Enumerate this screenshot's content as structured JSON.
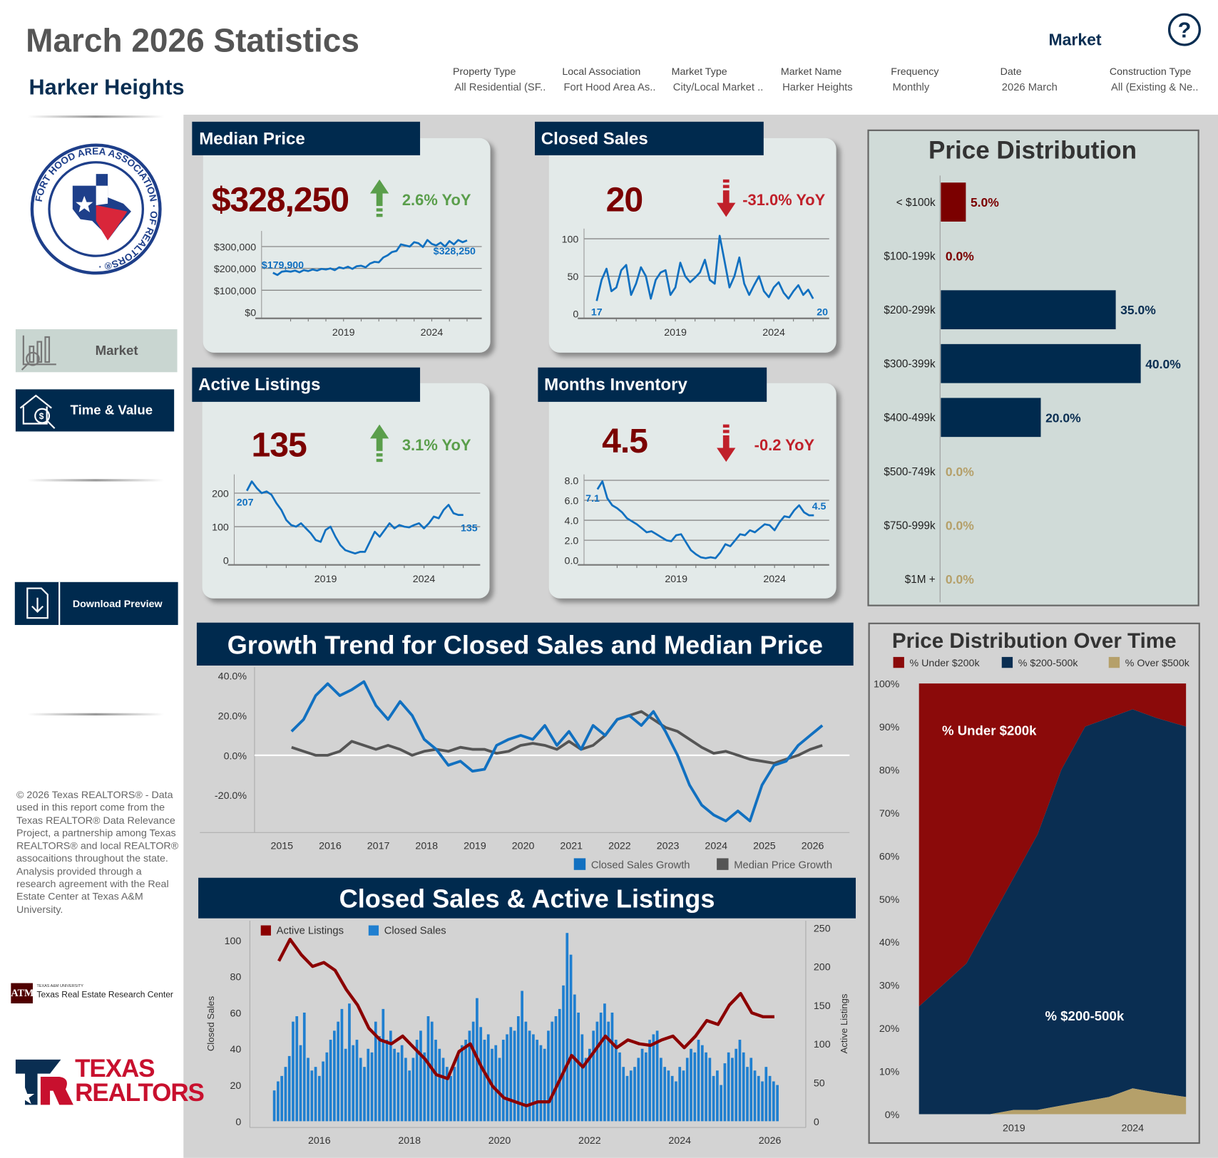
{
  "header": {
    "title": "March 2026 Statistics",
    "market_name": "Harker Heights",
    "view_label": "Market",
    "help_icon": "question-circle-icon"
  },
  "filters": [
    {
      "label": "Property Type",
      "value": "All Residential (SF.."
    },
    {
      "label": "Local Association",
      "value": "Fort Hood Area As.."
    },
    {
      "label": "Market Type",
      "value": "City/Local Market .."
    },
    {
      "label": "Market Name",
      "value": "Harker Heights"
    },
    {
      "label": "Frequency",
      "value": "Monthly"
    },
    {
      "label": "Date",
      "value": "2026 March"
    },
    {
      "label": "Construction Type",
      "value": "All (Existing & Ne.."
    }
  ],
  "sidebar": {
    "logo_text": "FORT HOOD AREA ASSOCIATION OF REALTORS",
    "nav": [
      {
        "label": "Market",
        "icon": "market-chart-icon",
        "active": true
      },
      {
        "label": "Time & Value",
        "icon": "house-money-icon",
        "active": false
      }
    ],
    "download_label": "Download Preview",
    "download_icon": "download-icon",
    "footer_text": "© 2026 Texas REALTORS® - Data used in this report come from the Texas REALTOR® Data Relevance Project, a partnership among Texas REALTORS® and local REALTOR® assocaitions throughout the state. Analysis provided through a research agreement with the Real Estate Center at Texas A&M University.",
    "tamu_logo_small": "TEXAS A&M UNIVERSITY",
    "tamu_logo_text": "Texas Real Estate Research Center",
    "texas_realtors_logo": "TEXAS REALTORS"
  },
  "colors": {
    "navy": "#002a4e",
    "kpi_value": "#7b0000",
    "positive": "#5a9e4b",
    "negative": "#c0202a",
    "line_blue": "#1170c0",
    "bar_blue": "#1f7fd0",
    "median_growth_gray": "#555555",
    "listings_red": "#8b0000",
    "tan": "#b5a06a"
  },
  "kpis": {
    "median_price": {
      "title": "Median Price",
      "value": "$328,250",
      "change": "2.6% YoY",
      "direction": "up",
      "first_label": "$179,900",
      "last_label": "$328,250"
    },
    "closed_sales": {
      "title": "Closed Sales",
      "value": "20",
      "change": "-31.0% YoY",
      "direction": "down",
      "first_label": "17",
      "last_label": "20"
    },
    "active_listings": {
      "title": "Active Listings",
      "value": "135",
      "change": "3.1% YoY",
      "direction": "up",
      "first_label": "207",
      "last_label": "135"
    },
    "months_inventory": {
      "title": "Months Inventory",
      "value": "4.5",
      "change": "-0.2 YoY",
      "direction": "down",
      "first_label": "7.1",
      "last_label": "4.5"
    }
  },
  "chart_data": [
    {
      "id": "median_price_spark",
      "type": "line",
      "frequency": "quarterly",
      "x_start": "2015 Q1",
      "xticks": [
        "2019",
        "2024"
      ],
      "yticks": [
        "$300,000",
        "$200,000",
        "$100,000",
        "$0"
      ],
      "values": [
        179900,
        170000,
        185000,
        188000,
        185000,
        190000,
        182000,
        192000,
        188000,
        195000,
        190000,
        198000,
        195000,
        200000,
        192000,
        205000,
        200000,
        208000,
        198000,
        210000,
        212000,
        205000,
        222000,
        230000,
        228000,
        250000,
        260000,
        275000,
        280000,
        310000,
        305000,
        300000,
        320000,
        315000,
        298000,
        330000,
        312000,
        305000,
        318000,
        300000,
        325000,
        310000,
        330000,
        320000,
        328250
      ]
    },
    {
      "id": "closed_sales_spark",
      "type": "line",
      "frequency": "quarterly",
      "x_start": "2015 Q1",
      "xticks": [
        "2019",
        "2024"
      ],
      "yticks": [
        "100",
        "50",
        "0"
      ],
      "values": [
        17,
        45,
        60,
        30,
        35,
        58,
        65,
        25,
        40,
        62,
        50,
        20,
        45,
        55,
        58,
        25,
        35,
        68,
        50,
        42,
        48,
        55,
        72,
        45,
        40,
        104,
        70,
        35,
        50,
        75,
        40,
        25,
        38,
        50,
        30,
        22,
        35,
        42,
        28,
        20,
        30,
        38,
        25,
        32,
        20
      ]
    },
    {
      "id": "active_listings_spark",
      "type": "line",
      "frequency": "quarterly",
      "x_start": "2015 Q1",
      "xticks": [
        "2019",
        "2024"
      ],
      "yticks": [
        "200",
        "100",
        "0"
      ],
      "values": [
        207,
        235,
        215,
        200,
        205,
        195,
        170,
        150,
        120,
        105,
        100,
        110,
        95,
        80,
        60,
        55,
        90,
        100,
        70,
        45,
        30,
        25,
        20,
        25,
        25,
        55,
        85,
        70,
        90,
        110,
        95,
        105,
        100,
        98,
        105,
        110,
        95,
        110,
        130,
        125,
        150,
        165,
        140,
        135,
        135
      ]
    },
    {
      "id": "months_inventory_spark",
      "type": "line",
      "frequency": "quarterly",
      "x_start": "2015 Q1",
      "xticks": [
        "2019",
        "2024"
      ],
      "yticks": [
        "8.0",
        "6.0",
        "4.0",
        "2.0",
        "0.0"
      ],
      "values": [
        7.1,
        7.9,
        6.2,
        5.5,
        5.2,
        4.8,
        4.2,
        3.9,
        3.6,
        3.2,
        2.8,
        2.9,
        2.6,
        2.3,
        2.0,
        1.9,
        2.5,
        2.6,
        1.8,
        1.0,
        0.6,
        0.3,
        0.2,
        0.3,
        0.2,
        0.8,
        1.6,
        1.4,
        2.0,
        2.6,
        2.5,
        3.0,
        2.8,
        3.2,
        3.6,
        3.5,
        3.0,
        3.8,
        4.4,
        4.3,
        5.0,
        5.5,
        4.8,
        4.5,
        4.5
      ]
    },
    {
      "id": "growth_trend",
      "type": "line",
      "title": "Growth Trend for Closed Sales and Median Price",
      "frequency": "quarterly",
      "x_start": "2015 Q1",
      "xticks": [
        "2015",
        "2016",
        "2017",
        "2018",
        "2019",
        "2020",
        "2021",
        "2022",
        "2023",
        "2024",
        "2025",
        "2026"
      ],
      "yticks": [
        "40.0%",
        "20.0%",
        "0.0%",
        "-20.0%"
      ],
      "series": [
        {
          "name": "Closed Sales Growth",
          "color": "#1170c0",
          "values": [
            12,
            18,
            30,
            36,
            30,
            33,
            37,
            25,
            18,
            27,
            20,
            8,
            3,
            -5,
            -3,
            -8,
            -7,
            5,
            8,
            10,
            8,
            15,
            5,
            12,
            3,
            15,
            10,
            18,
            20,
            15,
            22,
            12,
            0,
            -15,
            -25,
            -30,
            -33,
            -28,
            -33,
            -15,
            -5,
            -3,
            5,
            10,
            15
          ]
        },
        {
          "name": "Median Price Growth",
          "color": "#555555",
          "values": [
            4,
            2,
            0,
            0,
            2,
            7,
            5,
            3,
            5,
            3,
            0,
            2,
            3,
            2,
            4,
            3,
            3,
            1,
            2,
            5,
            6,
            5,
            3,
            7,
            3,
            5,
            10,
            18,
            20,
            22,
            18,
            14,
            12,
            8,
            4,
            1,
            2,
            0,
            -2,
            -3,
            -4,
            -2,
            0,
            3,
            5
          ]
        }
      ],
      "legend": "bottom-right"
    },
    {
      "id": "closed_sales_active_listings",
      "type": "bar+line",
      "title": "Closed Sales & Active Listings",
      "xticks": [
        "2016",
        "2018",
        "2020",
        "2022",
        "2024",
        "2026"
      ],
      "yticks_left": [
        "100",
        "80",
        "60",
        "40",
        "20",
        "0"
      ],
      "ylabel_left": "Closed Sales",
      "yticks_right": [
        "250",
        "200",
        "150",
        "100",
        "50",
        "0"
      ],
      "ylabel_right": "Active Listings",
      "series": [
        {
          "name": "Closed Sales",
          "type": "bar",
          "frequency": "monthly",
          "x_start": "2015-01",
          "color": "#1f7fd0",
          "values": [
            17,
            22,
            25,
            30,
            36,
            55,
            58,
            42,
            60,
            35,
            28,
            30,
            25,
            33,
            38,
            45,
            50,
            55,
            62,
            40,
            65,
            42,
            45,
            35,
            30,
            40,
            38,
            55,
            47,
            62,
            45,
            50,
            40,
            38,
            42,
            35,
            28,
            35,
            45,
            50,
            38,
            58,
            55,
            45,
            40,
            35,
            30,
            25,
            30,
            38,
            42,
            45,
            50,
            55,
            68,
            52,
            45,
            48,
            40,
            42,
            35,
            45,
            48,
            52,
            50,
            58,
            72,
            55,
            50,
            48,
            45,
            42,
            40,
            50,
            55,
            58,
            62,
            75,
            104,
            92,
            70,
            60,
            48,
            35,
            40,
            50,
            55,
            60,
            65,
            55,
            60,
            45,
            38,
            30,
            25,
            28,
            30,
            35,
            40,
            38,
            45,
            48,
            50,
            35,
            30,
            28,
            25,
            22,
            30,
            28,
            35,
            40,
            38,
            45,
            42,
            38,
            35,
            25,
            28,
            20,
            32,
            38,
            35,
            40,
            45,
            38,
            30,
            35,
            28,
            25,
            22,
            30,
            25,
            22,
            20
          ]
        },
        {
          "name": "Active Listings",
          "type": "line",
          "axis": "right",
          "frequency": "quarterly",
          "x_start": "2015 Q1",
          "color": "#8b0000",
          "values": [
            207,
            235,
            215,
            200,
            205,
            195,
            170,
            150,
            120,
            105,
            100,
            110,
            95,
            80,
            60,
            55,
            90,
            100,
            70,
            45,
            30,
            25,
            20,
            25,
            25,
            55,
            85,
            70,
            90,
            110,
            95,
            105,
            100,
            98,
            105,
            110,
            95,
            110,
            130,
            125,
            150,
            165,
            140,
            135,
            135
          ]
        }
      ],
      "legend": "top-left"
    },
    {
      "id": "price_distribution",
      "type": "bar",
      "title": "Price Distribution",
      "categories": [
        "< $100k",
        "$100-199k",
        "$200-299k",
        "$300-399k",
        "$400-499k",
        "$500-749k",
        "$750-999k",
        "$1M +"
      ],
      "values": [
        5.0,
        0.0,
        35.0,
        40.0,
        20.0,
        0.0,
        0.0,
        0.0
      ],
      "labels": [
        "5.0%",
        "0.0%",
        "35.0%",
        "40.0%",
        "20.0%",
        "0.0%",
        "0.0%",
        "0.0%"
      ],
      "bar_colors": [
        "#7b0000",
        "#7b0000",
        "#002a4e",
        "#002a4e",
        "#002a4e",
        "#b5a06a",
        "#b5a06a",
        "#b5a06a"
      ]
    },
    {
      "id": "price_distribution_over_time",
      "type": "area",
      "stacked": "100%",
      "title": "Price Distribution Over Time",
      "x": [
        2015,
        2016,
        2017,
        2018,
        2019,
        2020,
        2021,
        2022,
        2023,
        2024,
        2025,
        2026
      ],
      "xticks": [
        "2019",
        "2024"
      ],
      "yticks": [
        "100%",
        "90%",
        "80%",
        "70%",
        "60%",
        "50%",
        "40%",
        "30%",
        "20%",
        "10%",
        "0%"
      ],
      "series": [
        {
          "name": "% Under $200k",
          "color": "#8b0a0a",
          "values": [
            75,
            70,
            65,
            55,
            45,
            35,
            20,
            10,
            8,
            6,
            8,
            10
          ]
        },
        {
          "name": "% $200-500k",
          "color": "#0a2e52",
          "values": [
            25,
            30,
            35,
            45,
            54,
            64,
            78,
            87,
            88,
            88,
            87,
            86
          ]
        },
        {
          "name": "% Over $500k",
          "color": "#b5a06a",
          "values": [
            0,
            0,
            0,
            0,
            1,
            1,
            2,
            3,
            4,
            6,
            5,
            4
          ]
        }
      ],
      "annotations": [
        "% Under $200k",
        "% $200-500k"
      ],
      "legend": "top"
    }
  ]
}
